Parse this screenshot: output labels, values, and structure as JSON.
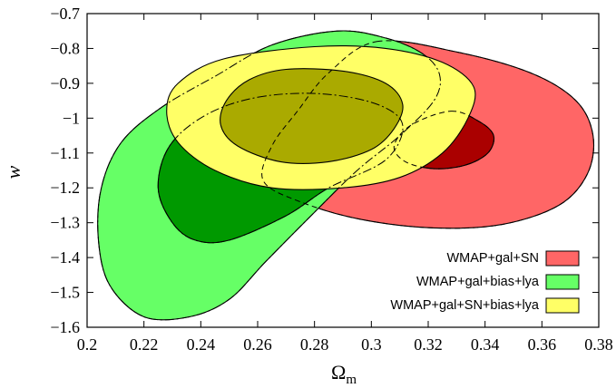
{
  "chart_data": {
    "type": "contour",
    "xlabel": "Ω",
    "xlabel_sub": "m",
    "ylabel": "w",
    "xlim": [
      0.2,
      0.38
    ],
    "ylim": [
      -1.6,
      -0.7
    ],
    "x_ticks": [
      0.2,
      0.22,
      0.24,
      0.26,
      0.28,
      0.3,
      0.32,
      0.34,
      0.36,
      0.38
    ],
    "y_ticks": [
      -0.7,
      -0.8,
      -0.9,
      -1,
      -1.1,
      -1.2,
      -1.3,
      -1.4,
      -1.5,
      -1.6
    ],
    "x_tick_labels": [
      "0.2",
      "0.22",
      "0.24",
      "0.26",
      "0.28",
      "0.3",
      "0.32",
      "0.34",
      "0.36",
      "0.38"
    ],
    "y_tick_labels": [
      "−0.7",
      "−0.8",
      "−0.9",
      "−1",
      "−1.1",
      "−1.2",
      "−1.3",
      "−1.4",
      "−1.5",
      "−1.6"
    ],
    "legend_position": "bottom-right",
    "series": [
      {
        "name": "WMAP+gal+SN",
        "color_outer": "#ff6666",
        "color_inner": "#aa0000",
        "outer": [
          [
            0.302,
            -0.78
          ],
          [
            0.33,
            -0.81
          ],
          [
            0.356,
            -0.87
          ],
          [
            0.372,
            -0.95
          ],
          [
            0.378,
            -1.05
          ],
          [
            0.376,
            -1.16
          ],
          [
            0.366,
            -1.25
          ],
          [
            0.346,
            -1.305
          ],
          [
            0.322,
            -1.315
          ],
          [
            0.296,
            -1.29
          ],
          [
            0.275,
            -1.24
          ],
          [
            0.262,
            -1.18
          ],
          [
            0.265,
            -1.08
          ],
          [
            0.274,
            -0.98
          ],
          [
            0.285,
            -0.87
          ]
        ],
        "inner": [
          [
            0.328,
            -0.98
          ],
          [
            0.338,
            -1.01
          ],
          [
            0.343,
            -1.05
          ],
          [
            0.341,
            -1.1
          ],
          [
            0.333,
            -1.135
          ],
          [
            0.322,
            -1.145
          ],
          [
            0.312,
            -1.125
          ],
          [
            0.308,
            -1.08
          ],
          [
            0.314,
            -1.02
          ]
        ]
      },
      {
        "name": "WMAP+gal+bias+lya",
        "color_outer": "#66ff66",
        "color_inner": "#009900",
        "outer": [
          [
            0.288,
            -0.75
          ],
          [
            0.305,
            -0.77
          ],
          [
            0.318,
            -0.815
          ],
          [
            0.324,
            -0.875
          ],
          [
            0.322,
            -0.95
          ],
          [
            0.31,
            -1.05
          ],
          [
            0.295,
            -1.15
          ],
          [
            0.28,
            -1.27
          ],
          [
            0.263,
            -1.41
          ],
          [
            0.25,
            -1.52
          ],
          [
            0.236,
            -1.57
          ],
          [
            0.22,
            -1.57
          ],
          [
            0.208,
            -1.48
          ],
          [
            0.204,
            -1.35
          ],
          [
            0.205,
            -1.2
          ],
          [
            0.212,
            -1.07
          ],
          [
            0.226,
            -0.97
          ],
          [
            0.245,
            -0.88
          ],
          [
            0.265,
            -0.79
          ]
        ],
        "inner": [
          [
            0.26,
            -0.94
          ],
          [
            0.282,
            -0.93
          ],
          [
            0.302,
            -0.96
          ],
          [
            0.311,
            -1.02
          ],
          [
            0.305,
            -1.12
          ],
          [
            0.285,
            -1.2
          ],
          [
            0.27,
            -1.28
          ],
          [
            0.25,
            -1.35
          ],
          [
            0.238,
            -1.35
          ],
          [
            0.23,
            -1.3
          ],
          [
            0.225,
            -1.2
          ],
          [
            0.229,
            -1.08
          ],
          [
            0.242,
            -0.99
          ]
        ]
      },
      {
        "name": "WMAP+gal+SN+bias+lya",
        "color_outer": "#ffff66",
        "color_inner": "#aaaa00",
        "outer": [
          [
            0.28,
            -0.795
          ],
          [
            0.305,
            -0.8
          ],
          [
            0.325,
            -0.84
          ],
          [
            0.336,
            -0.91
          ],
          [
            0.334,
            -1.0
          ],
          [
            0.325,
            -1.1
          ],
          [
            0.31,
            -1.17
          ],
          [
            0.29,
            -1.2
          ],
          [
            0.265,
            -1.2
          ],
          [
            0.245,
            -1.15
          ],
          [
            0.232,
            -1.07
          ],
          [
            0.228,
            -0.98
          ],
          [
            0.232,
            -0.9
          ],
          [
            0.248,
            -0.83
          ]
        ],
        "inner": [
          [
            0.27,
            -0.86
          ],
          [
            0.29,
            -0.865
          ],
          [
            0.305,
            -0.9
          ],
          [
            0.311,
            -0.96
          ],
          [
            0.308,
            -1.03
          ],
          [
            0.3,
            -1.09
          ],
          [
            0.285,
            -1.125
          ],
          [
            0.268,
            -1.125
          ],
          [
            0.253,
            -1.08
          ],
          [
            0.247,
            -1.02
          ],
          [
            0.249,
            -0.95
          ],
          [
            0.257,
            -0.89
          ]
        ]
      }
    ]
  }
}
